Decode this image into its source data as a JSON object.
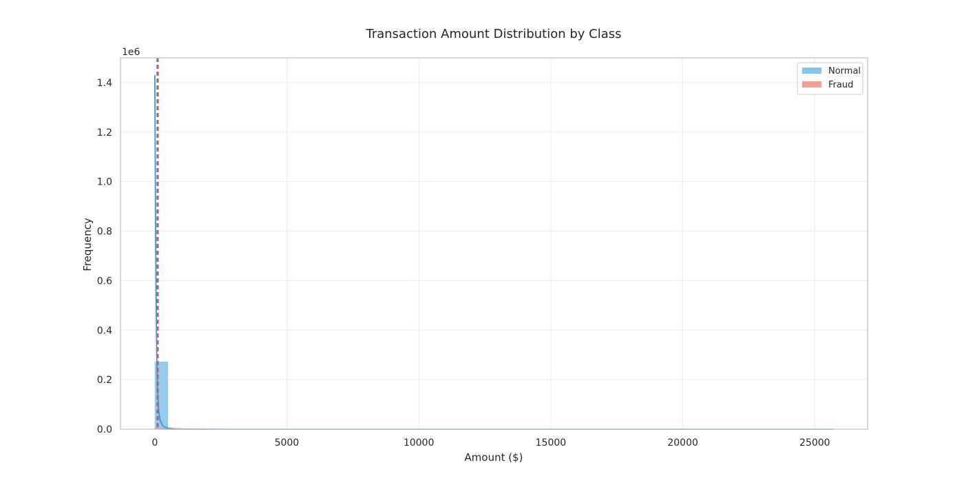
{
  "chart_data": {
    "type": "bar",
    "title": "Transaction Amount Distribution by Class",
    "xlabel": "Amount ($)",
    "ylabel": "Frequency",
    "y_offset_label": "1e6",
    "xlim": [
      -1300,
      27000
    ],
    "ylim": [
      0,
      1500000
    ],
    "x_ticks": [
      0,
      5000,
      10000,
      15000,
      20000,
      25000
    ],
    "x_tick_labels": [
      "0",
      "5000",
      "10000",
      "15000",
      "20000",
      "25000"
    ],
    "y_ticks": [
      0,
      200000,
      400000,
      600000,
      800000,
      1000000,
      1200000,
      1400000
    ],
    "y_tick_labels": [
      "0.0",
      "0.2",
      "0.4",
      "0.6",
      "0.8",
      "1.0",
      "1.2",
      "1.4"
    ],
    "grid": true,
    "legend_position": "top-right",
    "series": [
      {
        "name": "Normal",
        "color": "#87c6ea",
        "bins": [
          {
            "x0": 0,
            "x1": 500,
            "value": 273000
          },
          {
            "x0": 500,
            "x1": 1000,
            "value": 4000
          },
          {
            "x0": 1000,
            "x1": 1500,
            "value": 1200
          },
          {
            "x0": 1500,
            "x1": 2000,
            "value": 500
          },
          {
            "x0": 2000,
            "x1": 2500,
            "value": 250
          },
          {
            "x0": 2500,
            "x1": 3000,
            "value": 120
          }
        ],
        "kde": {
          "color": "#3498db",
          "x": [
            0,
            25,
            50,
            75,
            100,
            150,
            200,
            300,
            400,
            500,
            750,
            1000,
            1500,
            2000,
            3000,
            5000,
            10000,
            15000,
            20000,
            25000,
            25700
          ],
          "y": [
            1430000,
            900000,
            520000,
            300000,
            170000,
            70000,
            35000,
            14000,
            7000,
            4000,
            1500,
            700,
            250,
            120,
            50,
            15,
            4,
            2,
            1,
            1,
            1
          ]
        }
      },
      {
        "name": "Fraud",
        "color": "#f1a098",
        "bins": [
          {
            "x0": 0,
            "x1": 500,
            "value": 450
          }
        ],
        "kde": {
          "color": "#e74c3c",
          "x": [
            0,
            100,
            500,
            1000,
            2000
          ],
          "y": [
            2000,
            800,
            200,
            50,
            5
          ]
        }
      }
    ],
    "reference_lines": [
      {
        "x": 88,
        "color": "#4a90c2",
        "style": "dashed"
      },
      {
        "x": 122,
        "color": "#d9534f",
        "style": "dashed"
      }
    ]
  }
}
